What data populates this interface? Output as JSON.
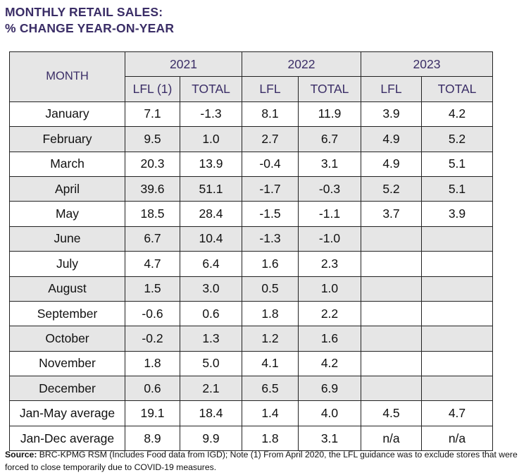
{
  "title": {
    "line1": "MONTHLY RETAIL SALES:",
    "line2": "% CHANGE YEAR-ON-YEAR"
  },
  "table": {
    "month_header": "MONTH",
    "years": [
      "2021",
      "2022",
      "2023"
    ],
    "subheaders": [
      "LFL (1)",
      "TOTAL",
      "LFL",
      "TOTAL",
      "LFL",
      "TOTAL"
    ],
    "rows": [
      {
        "month": "January",
        "cells": [
          "7.1",
          "-1.3",
          "8.1",
          "11.9",
          "3.9",
          "4.2"
        ]
      },
      {
        "month": "February",
        "cells": [
          "9.5",
          "1.0",
          "2.7",
          "6.7",
          "4.9",
          "5.2"
        ]
      },
      {
        "month": "March",
        "cells": [
          "20.3",
          "13.9",
          "-0.4",
          "3.1",
          "4.9",
          "5.1"
        ]
      },
      {
        "month": "April",
        "cells": [
          "39.6",
          "51.1",
          "-1.7",
          "-0.3",
          "5.2",
          "5.1"
        ]
      },
      {
        "month": "May",
        "cells": [
          "18.5",
          "28.4",
          "-1.5",
          "-1.1",
          "3.7",
          "3.9"
        ]
      },
      {
        "month": "June",
        "cells": [
          "6.7",
          "10.4",
          "-1.3",
          "-1.0",
          "",
          ""
        ]
      },
      {
        "month": "July",
        "cells": [
          "4.7",
          "6.4",
          "1.6",
          "2.3",
          "",
          ""
        ]
      },
      {
        "month": "August",
        "cells": [
          "1.5",
          "3.0",
          "0.5",
          "1.0",
          "",
          ""
        ]
      },
      {
        "month": "September",
        "cells": [
          "-0.6",
          "0.6",
          "1.8",
          "2.2",
          "",
          ""
        ]
      },
      {
        "month": "October",
        "cells": [
          "-0.2",
          "1.3",
          "1.2",
          "1.6",
          "",
          ""
        ]
      },
      {
        "month": "November",
        "cells": [
          "1.8",
          "5.0",
          "4.1",
          "4.2",
          "",
          ""
        ]
      },
      {
        "month": "December",
        "cells": [
          "0.6",
          "2.1",
          "6.5",
          "6.9",
          "",
          ""
        ]
      },
      {
        "month": "Jan-May average",
        "cells": [
          "19.1",
          "18.4",
          "1.4",
          "4.0",
          "4.5",
          "4.7"
        ]
      },
      {
        "month": "Jan-Dec average",
        "cells": [
          "8.9",
          "9.9",
          "1.8",
          "3.1",
          "n/a",
          "n/a"
        ]
      }
    ]
  },
  "source": {
    "label": "Source:",
    "text": " BRC-KPMG RSM (Includes Food data from IGD); Note (1) From April 2020, the LFL guidance was to exclude stores that were forced to close temporarily due to COVID-19 measures."
  },
  "colors": {
    "heading": "#3a2d66",
    "shade": "#e6e6e6",
    "border": "#222222"
  }
}
